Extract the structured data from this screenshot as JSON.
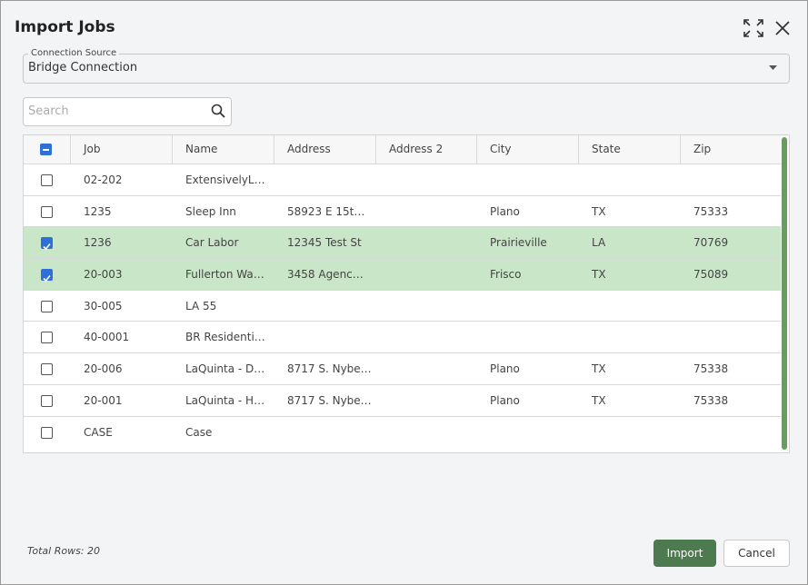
{
  "dialog": {
    "title": "Import Jobs"
  },
  "connection_source": {
    "label": "Connection Source",
    "value": "Bridge Connection"
  },
  "search": {
    "placeholder": "Search"
  },
  "table": {
    "select_all_state": "indeterminate",
    "headers": [
      "Job",
      "Name",
      "Address",
      "Address 2",
      "City",
      "State",
      "Zip"
    ],
    "rows": [
      {
        "selected": false,
        "cells": [
          "02-202",
          "ExtensivelyL…",
          null,
          null,
          null,
          null,
          null
        ]
      },
      {
        "selected": false,
        "cells": [
          "1235",
          "Sleep Inn",
          "58923 E 15t…",
          null,
          "Plano",
          "TX",
          "75333"
        ]
      },
      {
        "selected": true,
        "cells": [
          "1236",
          "Car Labor",
          "12345 Test St",
          null,
          "Prairieville",
          "LA",
          "70769"
        ]
      },
      {
        "selected": true,
        "cells": [
          "20-003",
          "Fullerton Wa…",
          "3458 Agenc…",
          null,
          "Frisco",
          "TX",
          "75089"
        ]
      },
      {
        "selected": false,
        "cells": [
          "30-005",
          "LA 55",
          null,
          null,
          null,
          null,
          null
        ]
      },
      {
        "selected": false,
        "cells": [
          "40-0001",
          "BR Residenti…",
          null,
          null,
          null,
          null,
          null
        ]
      },
      {
        "selected": false,
        "cells": [
          "20-006",
          "LaQuinta - D…",
          "8717 S. Nybe…",
          null,
          "Plano",
          "TX",
          "75338"
        ]
      },
      {
        "selected": false,
        "cells": [
          "20-001",
          "LaQuinta - H…",
          "8717 S. Nybe…",
          null,
          "Plano",
          "TX",
          "75338"
        ]
      },
      {
        "selected": false,
        "cells": [
          "CASE",
          "Case",
          null,
          null,
          null,
          null,
          null
        ]
      }
    ]
  },
  "footer": {
    "total_rows": "Total Rows: 20",
    "import_button": "Import",
    "cancel_button": "Cancel"
  }
}
